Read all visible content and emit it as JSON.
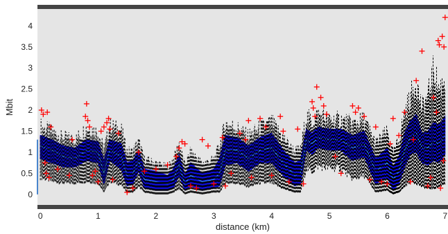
{
  "chart_data": {
    "type": "line",
    "title": "",
    "xlabel": "distance (km)",
    "ylabel": "Mbit",
    "xlim": [
      -0.05,
      7.05
    ],
    "ylim": [
      -0.25,
      4.4
    ],
    "x_ticks": [
      0,
      1,
      2,
      3,
      4,
      5,
      6,
      7
    ],
    "y_ticks": [
      0,
      0.5,
      1,
      1.5,
      2,
      2.5,
      3,
      3.5,
      4
    ],
    "grid": false,
    "background": "#e5e5e5",
    "band_color": "#0000ff",
    "mean_color": "#3aa0ff",
    "whisker_color": "#000000",
    "outlier_color": "#ff0000",
    "series": [
      {
        "x": [
          0,
          0.2,
          0.4,
          0.6,
          0.8,
          1.0,
          1.1,
          1.2,
          1.4,
          1.5,
          1.6,
          1.7,
          1.8,
          2.0,
          2.2,
          2.3,
          2.4,
          2.5,
          2.6,
          2.8,
          3.0,
          3.1,
          3.2,
          3.4,
          3.6,
          3.8,
          4.0,
          4.2,
          4.4,
          4.5,
          4.6,
          4.7,
          4.8,
          5.0,
          5.2,
          5.4,
          5.6,
          5.8,
          6.0,
          6.1,
          6.2,
          6.3,
          6.4,
          6.5,
          6.6,
          6.7,
          6.8,
          6.9,
          7.0
        ],
        "mean": [
          1.15,
          1.05,
          0.9,
          0.85,
          1.05,
          1.0,
          0.5,
          1.05,
          0.9,
          0.45,
          0.5,
          0.8,
          0.35,
          0.3,
          0.25,
          0.35,
          0.7,
          0.25,
          0.45,
          0.3,
          0.35,
          0.5,
          1.05,
          1.05,
          0.85,
          1.05,
          1.1,
          0.75,
          0.45,
          0.5,
          1.3,
          1.2,
          1.35,
          1.3,
          1.3,
          1.1,
          1.2,
          0.55,
          0.75,
          0.35,
          0.55,
          1.05,
          1.35,
          1.45,
          1.1,
          1.1,
          1.25,
          1.2,
          1.4
        ],
        "lower": [
          0.85,
          0.75,
          0.65,
          0.65,
          0.8,
          0.75,
          0.25,
          0.8,
          0.6,
          0.2,
          0.25,
          0.55,
          0.15,
          0.1,
          0.1,
          0.15,
          0.45,
          0.1,
          0.2,
          0.1,
          0.15,
          0.2,
          0.7,
          0.75,
          0.55,
          0.75,
          0.75,
          0.45,
          0.2,
          0.25,
          1.05,
          0.95,
          1.1,
          1.05,
          1.05,
          0.8,
          0.9,
          0.25,
          0.4,
          0.1,
          0.25,
          0.65,
          0.95,
          1.0,
          0.75,
          0.7,
          0.8,
          0.75,
          0.95
        ],
        "upper": [
          1.4,
          1.3,
          1.15,
          1.1,
          1.3,
          1.25,
          0.8,
          1.3,
          1.2,
          0.75,
          0.8,
          1.05,
          0.6,
          0.55,
          0.45,
          0.6,
          0.95,
          0.45,
          0.75,
          0.5,
          0.6,
          0.85,
          1.4,
          1.35,
          1.15,
          1.35,
          1.45,
          1.05,
          0.75,
          0.8,
          1.55,
          1.45,
          1.6,
          1.55,
          1.55,
          1.4,
          1.5,
          0.85,
          1.1,
          0.65,
          0.9,
          1.45,
          1.75,
          1.9,
          1.45,
          1.5,
          1.7,
          1.65,
          1.85
        ],
        "whisker_low": [
          0.45,
          0.35,
          0.3,
          0.3,
          0.35,
          0.3,
          0.05,
          0.35,
          0.25,
          0.05,
          0.05,
          0.2,
          0.05,
          0.0,
          0.0,
          0.05,
          0.15,
          0.0,
          0.05,
          0.0,
          0.05,
          0.05,
          0.3,
          0.3,
          0.2,
          0.3,
          0.3,
          0.15,
          0.05,
          0.05,
          0.7,
          0.6,
          0.75,
          0.7,
          0.7,
          0.4,
          0.5,
          0.05,
          0.1,
          0.0,
          0.05,
          0.2,
          0.35,
          0.3,
          0.2,
          0.15,
          0.15,
          0.2,
          0.3
        ],
        "whisker_high": [
          1.75,
          1.6,
          1.45,
          1.4,
          1.7,
          1.6,
          1.15,
          1.75,
          1.65,
          1.1,
          1.1,
          1.35,
          0.9,
          0.8,
          0.7,
          0.9,
          1.3,
          0.75,
          1.1,
          0.8,
          0.9,
          1.25,
          1.8,
          1.7,
          1.5,
          1.7,
          1.85,
          1.45,
          1.1,
          1.15,
          2.0,
          1.85,
          2.05,
          1.9,
          1.9,
          1.8,
          1.9,
          1.3,
          1.6,
          1.05,
          1.4,
          2.1,
          2.5,
          2.9,
          2.2,
          2.5,
          3.2,
          2.7,
          3.0
        ]
      }
    ],
    "outliers": [
      [
        0.02,
        2.0
      ],
      [
        0.05,
        1.9
      ],
      [
        0.08,
        0.75
      ],
      [
        0.1,
        0.5
      ],
      [
        0.12,
        1.95
      ],
      [
        0.15,
        0.4
      ],
      [
        0.18,
        1.6
      ],
      [
        0.3,
        0.6
      ],
      [
        0.5,
        0.45
      ],
      [
        0.55,
        1.3
      ],
      [
        0.78,
        1.85
      ],
      [
        0.8,
        2.15
      ],
      [
        0.82,
        1.75
      ],
      [
        0.85,
        1.6
      ],
      [
        0.9,
        0.45
      ],
      [
        0.95,
        0.55
      ],
      [
        1.0,
        0.3
      ],
      [
        1.05,
        1.5
      ],
      [
        1.1,
        1.6
      ],
      [
        1.15,
        1.7
      ],
      [
        1.18,
        1.8
      ],
      [
        1.2,
        1.55
      ],
      [
        1.25,
        0.35
      ],
      [
        1.35,
        1.45
      ],
      [
        1.5,
        0.05
      ],
      [
        1.6,
        0.15
      ],
      [
        1.7,
        1.0
      ],
      [
        1.8,
        0.55
      ],
      [
        2.0,
        0.6
      ],
      [
        2.2,
        0.7
      ],
      [
        2.35,
        0.9
      ],
      [
        2.4,
        1.1
      ],
      [
        2.45,
        1.25
      ],
      [
        2.5,
        1.2
      ],
      [
        2.6,
        0.2
      ],
      [
        2.7,
        0.15
      ],
      [
        2.8,
        1.3
      ],
      [
        2.9,
        1.15
      ],
      [
        3.0,
        0.25
      ],
      [
        3.15,
        1.35
      ],
      [
        3.2,
        0.2
      ],
      [
        3.3,
        0.5
      ],
      [
        3.45,
        1.45
      ],
      [
        3.55,
        1.3
      ],
      [
        3.6,
        1.75
      ],
      [
        3.65,
        0.4
      ],
      [
        3.8,
        1.8
      ],
      [
        3.9,
        1.6
      ],
      [
        4.0,
        0.45
      ],
      [
        4.15,
        1.85
      ],
      [
        4.2,
        1.5
      ],
      [
        4.3,
        0.3
      ],
      [
        4.45,
        1.55
      ],
      [
        4.55,
        0.25
      ],
      [
        4.7,
        2.2
      ],
      [
        4.72,
        2.05
      ],
      [
        4.75,
        1.85
      ],
      [
        4.78,
        2.55
      ],
      [
        4.85,
        2.3
      ],
      [
        4.9,
        2.1
      ],
      [
        4.95,
        1.9
      ],
      [
        5.1,
        0.9
      ],
      [
        5.2,
        0.5
      ],
      [
        5.4,
        2.1
      ],
      [
        5.45,
        1.95
      ],
      [
        5.5,
        2.05
      ],
      [
        5.6,
        1.85
      ],
      [
        5.7,
        0.35
      ],
      [
        5.8,
        1.6
      ],
      [
        5.9,
        0.3
      ],
      [
        6.0,
        0.25
      ],
      [
        6.05,
        1.2
      ],
      [
        6.1,
        1.8
      ],
      [
        6.2,
        1.4
      ],
      [
        6.3,
        1.95
      ],
      [
        6.4,
        0.3
      ],
      [
        6.45,
        1.3
      ],
      [
        6.5,
        2.7
      ],
      [
        6.6,
        3.4
      ],
      [
        6.7,
        0.2
      ],
      [
        6.75,
        0.4
      ],
      [
        6.8,
        2.3
      ],
      [
        6.85,
        1.95
      ],
      [
        6.88,
        3.65
      ],
      [
        6.9,
        3.55
      ],
      [
        6.92,
        0.15
      ],
      [
        6.95,
        3.75
      ],
      [
        6.97,
        0.8
      ],
      [
        7.0,
        4.2
      ],
      [
        6.98,
        3.5
      ]
    ]
  }
}
